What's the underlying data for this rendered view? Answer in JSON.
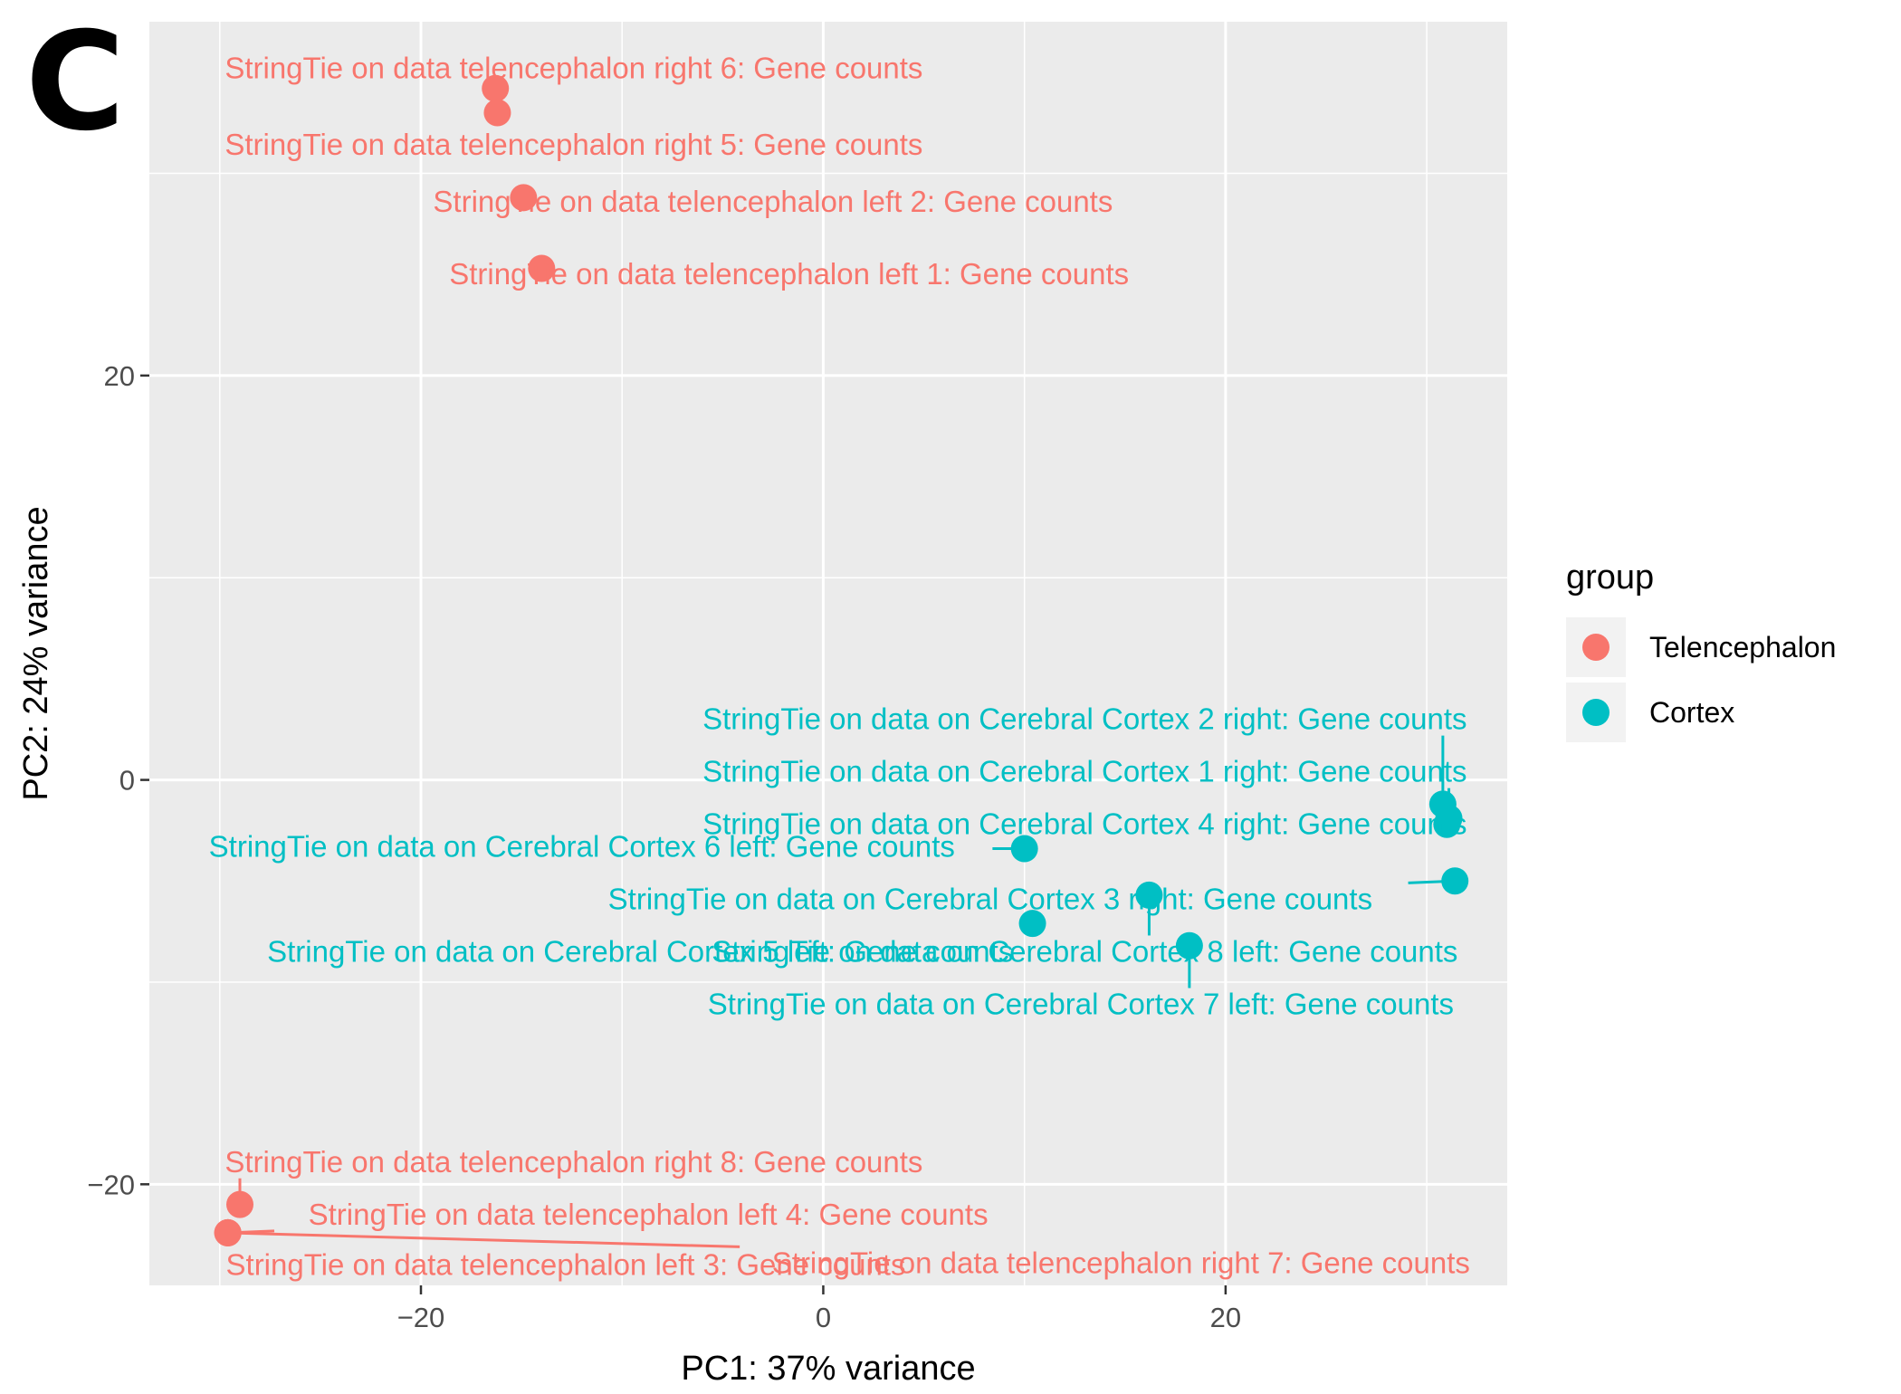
{
  "panel_letter": "C",
  "colors": {
    "Telencephalon": "#F8766D",
    "Cortex": "#00BFC4",
    "panel_bg": "#EBEBEB",
    "grid": "#FFFFFF"
  },
  "chart_data": {
    "type": "scatter",
    "xlabel": "PC1: 37% variance",
    "ylabel": "PC2: 24% variance",
    "xlim": [
      -33.5,
      34
    ],
    "ylim": [
      -25,
      37.5
    ],
    "x_ticks": [
      -20,
      0,
      20
    ],
    "y_ticks": [
      -20,
      0,
      20
    ],
    "x_tick_labels": [
      "−20",
      "0",
      "20"
    ],
    "y_tick_labels": [
      "−20",
      "0",
      "20"
    ],
    "grid": true,
    "legend": {
      "title": "group",
      "placement": "right",
      "entries": [
        "Telencephalon",
        "Cortex"
      ]
    },
    "points": [
      {
        "group": "Telencephalon",
        "x": -16.3,
        "y": 34.2,
        "label": "StringTie on data telencephalon right 6: Gene counts",
        "lx": -12.4,
        "ly": 35.2
      },
      {
        "group": "Telencephalon",
        "x": -16.2,
        "y": 33.0,
        "label": "StringTie on data telencephalon right 5: Gene counts",
        "lx": -12.4,
        "ly": 31.4
      },
      {
        "group": "Telencephalon",
        "x": -14.9,
        "y": 28.8,
        "label": "StringTie on data telencephalon left 2: Gene counts",
        "lx": -2.5,
        "ly": 28.6
      },
      {
        "group": "Telencephalon",
        "x": -14.0,
        "y": 25.3,
        "label": "StringTie on data telencephalon left 1: Gene counts",
        "lx": -1.7,
        "ly": 25.0
      },
      {
        "group": "Telencephalon",
        "x": -29.0,
        "y": -21.0,
        "label": "StringTie on data telencephalon right 8: Gene counts",
        "lx": -12.4,
        "ly": -18.9
      },
      {
        "group": "Telencephalon",
        "x": -29.6,
        "y": -22.4,
        "label": "StringTie on data telencephalon left 4: Gene counts",
        "lx": -8.7,
        "ly": -21.5
      },
      {
        "group": "Telencephalon",
        "x": -29.6,
        "y": -22.4,
        "label": "StringTie on data telencephalon left 3: Gene counts",
        "lx": -12.8,
        "ly": -24.0
      },
      {
        "group": "Telencephalon",
        "x": -29.6,
        "y": -22.4,
        "label": "StringTie on data telencephalon right 7: Gene counts",
        "lx": 14.8,
        "ly": -23.9
      },
      {
        "group": "Cortex",
        "x": 30.8,
        "y": -1.2,
        "label": "StringTie on data on Cerebral Cortex 2 right: Gene counts",
        "lx": 13.0,
        "ly": 3.0
      },
      {
        "group": "Cortex",
        "x": 31.1,
        "y": -1.9,
        "label": "StringTie on data on Cerebral Cortex 1 right: Gene counts",
        "lx": 13.0,
        "ly": 0.4
      },
      {
        "group": "Cortex",
        "x": 31.0,
        "y": -2.2,
        "label": "StringTie on data on Cerebral Cortex 4 right: Gene counts",
        "lx": 13.0,
        "ly": -2.2
      },
      {
        "group": "Cortex",
        "x": 31.4,
        "y": -5.0,
        "label": "StringTie on data on Cerebral Cortex 3 right: Gene counts",
        "lx": 8.3,
        "ly": -5.9
      },
      {
        "group": "Cortex",
        "x": 10.0,
        "y": -3.4,
        "label": "StringTie on data on Cerebral Cortex 6 left: Gene counts",
        "lx": -12.0,
        "ly": -3.3
      },
      {
        "group": "Cortex",
        "x": 10.4,
        "y": -7.1,
        "label": "StringTie on data on Cerebral Cortex 5 left: Gene counts",
        "lx": -9.1,
        "ly": -8.5
      },
      {
        "group": "Cortex",
        "x": 16.2,
        "y": -5.7,
        "label": "StringTie on data on Cerebral Cortex 8 left: Gene counts",
        "lx": 13.0,
        "ly": -8.5
      },
      {
        "group": "Cortex",
        "x": 18.2,
        "y": -8.2,
        "label": "StringTie on data on Cerebral Cortex 7 left: Gene counts",
        "lx": 12.8,
        "ly": -11.1
      }
    ]
  }
}
